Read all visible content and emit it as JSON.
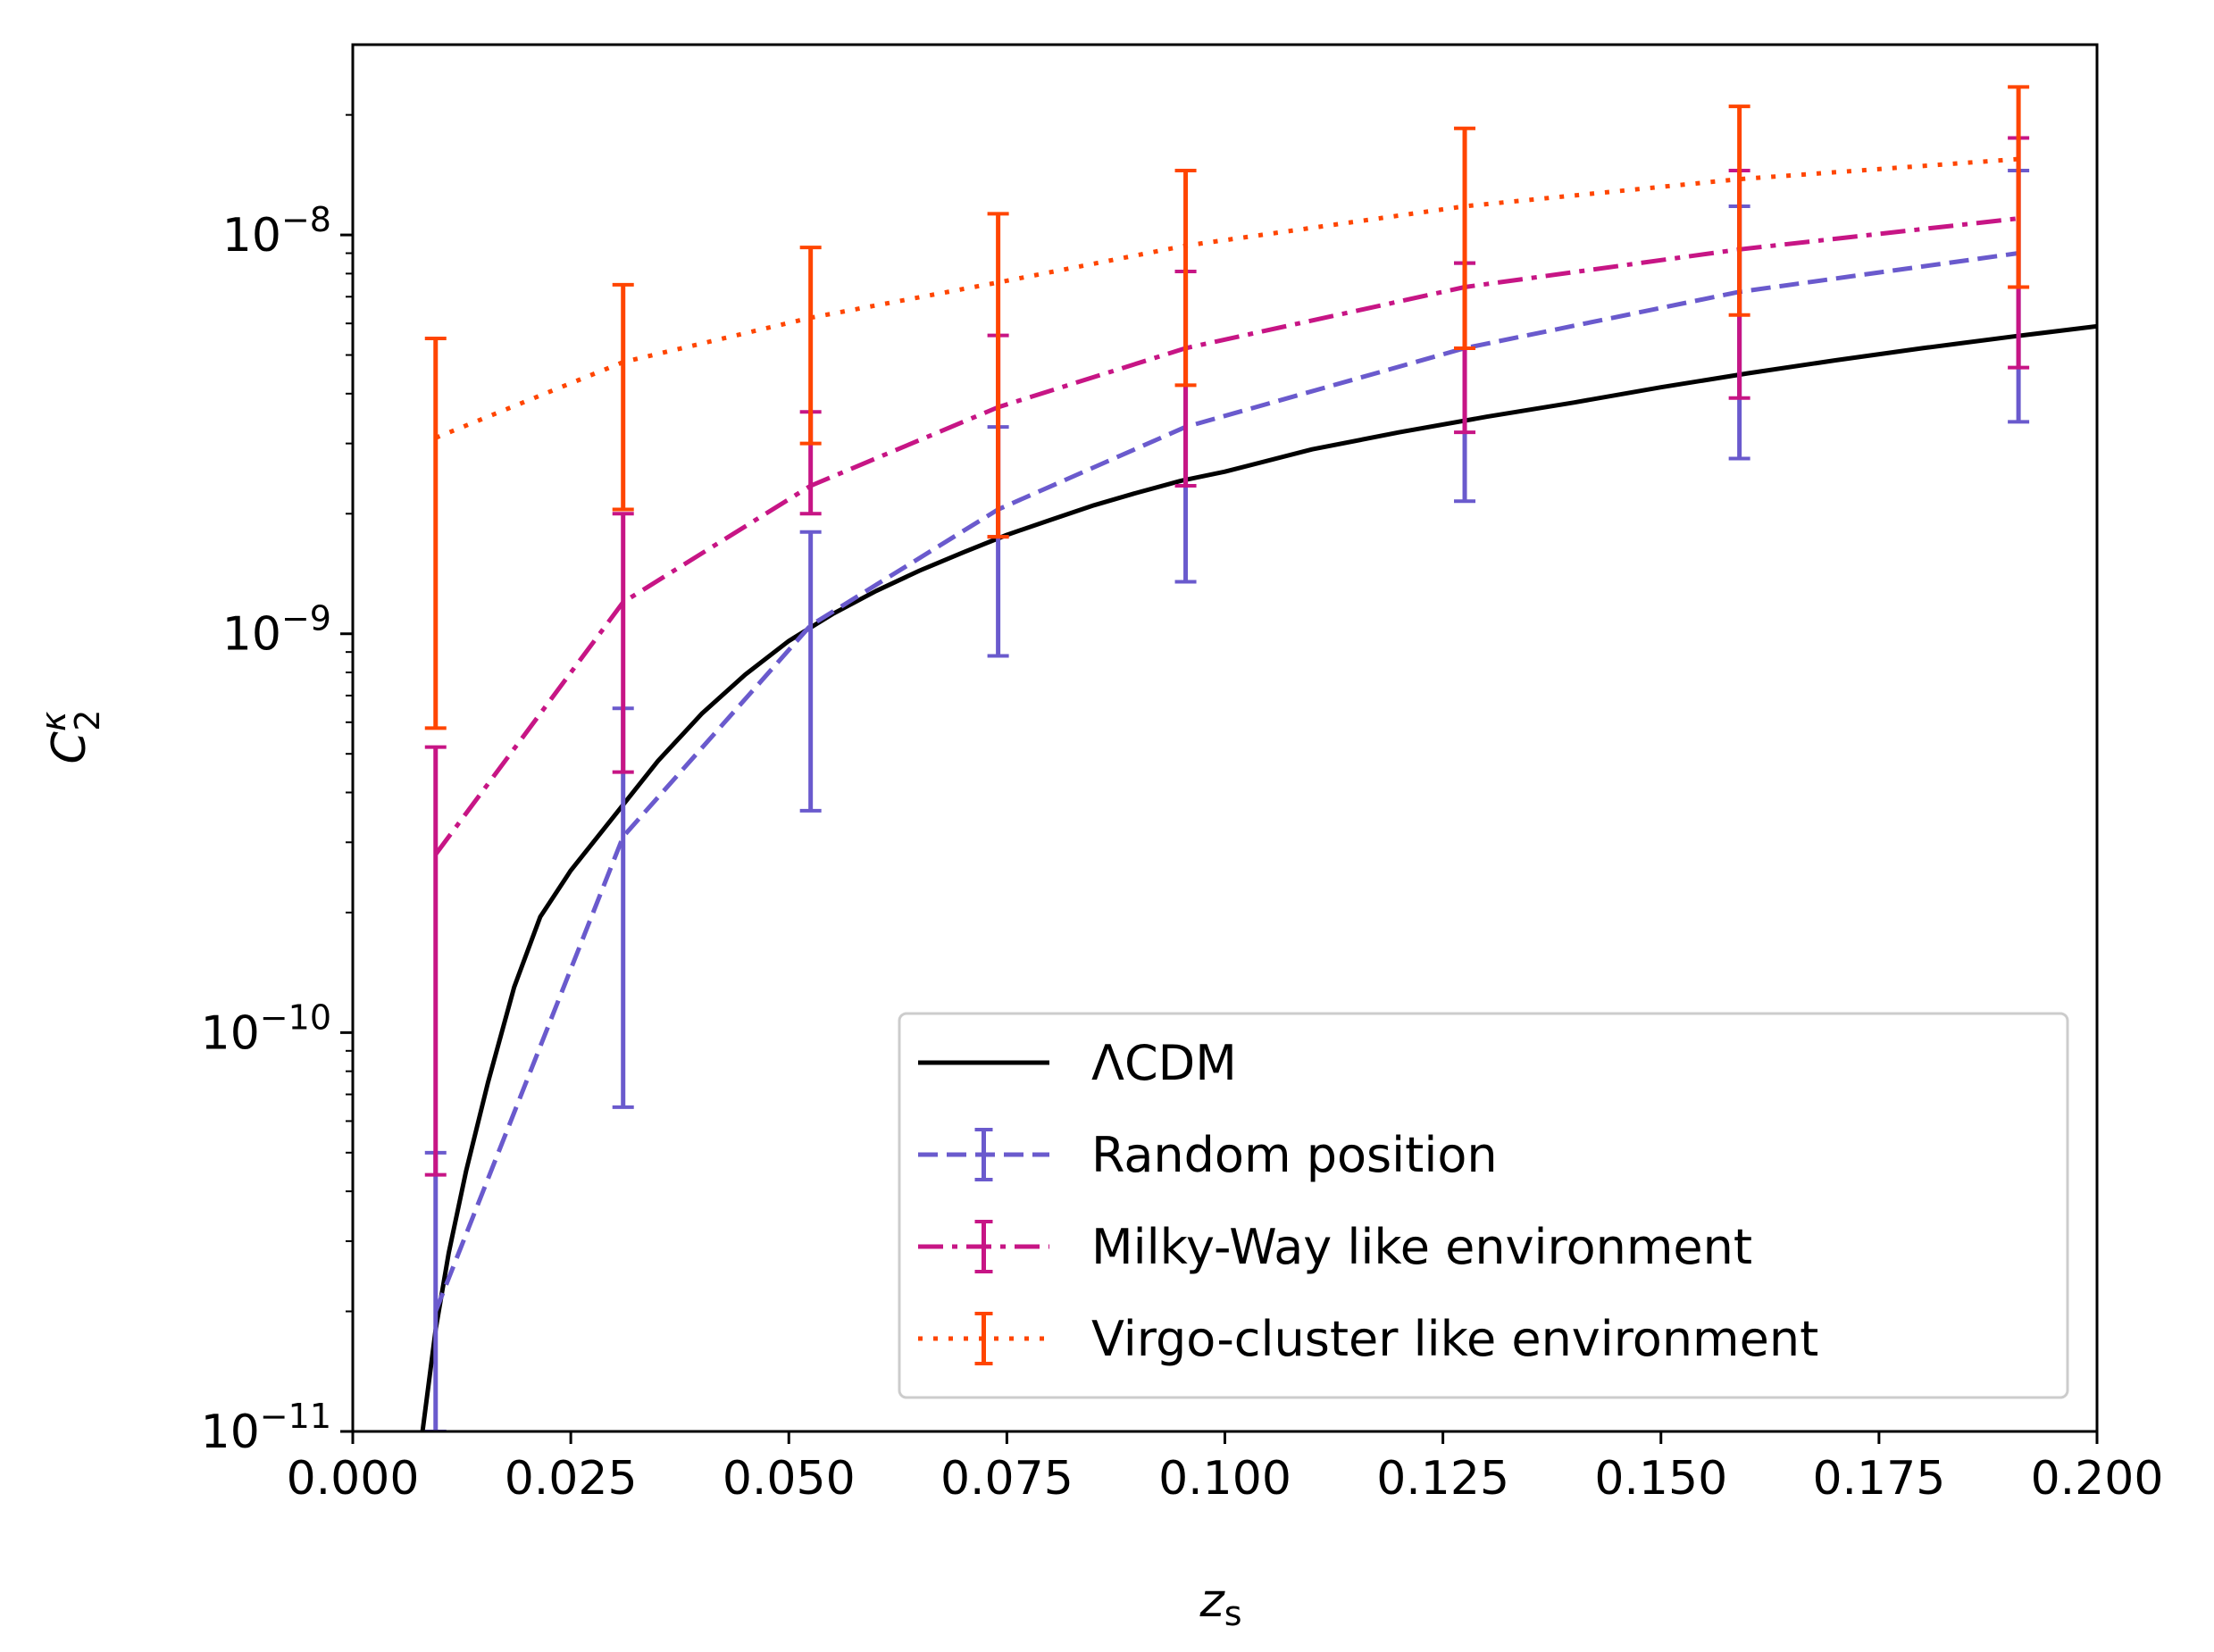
{
  "chart_data": {
    "type": "line",
    "xlabel": "z",
    "xlabel_sub": "s",
    "ylabel": "C",
    "ylabel_sup": "κ",
    "ylabel_sub": "2",
    "xscale": "linear",
    "yscale": "log",
    "xlim": [
      0.0,
      0.2
    ],
    "ylim": [
      1e-11,
      3e-08
    ],
    "xticks": [
      0.0,
      0.025,
      0.05,
      0.075,
      0.1,
      0.125,
      0.15,
      0.175,
      0.2
    ],
    "xtick_labels": [
      "0.000",
      "0.025",
      "0.050",
      "0.075",
      "0.100",
      "0.125",
      "0.150",
      "0.175",
      "0.200"
    ],
    "yticks": [
      {
        "value": 1e-11,
        "base": "10",
        "exp": "−11"
      },
      {
        "value": 1e-10,
        "base": "10",
        "exp": "−10"
      },
      {
        "value": 1e-09,
        "base": "10",
        "exp": "−9"
      },
      {
        "value": 1e-08,
        "base": "10",
        "exp": "−8"
      }
    ],
    "legend_position": "lower-right",
    "series": [
      {
        "name": "ΛCDM",
        "color": "#000000",
        "style": "solid",
        "x": [
          0.008,
          0.0095,
          0.011,
          0.013,
          0.0155,
          0.0185,
          0.0215,
          0.025,
          0.03,
          0.035,
          0.04,
          0.045,
          0.05,
          0.055,
          0.06,
          0.065,
          0.07,
          0.075,
          0.08,
          0.085,
          0.09,
          0.095,
          0.1,
          0.11,
          0.12,
          0.13,
          0.14,
          0.15,
          0.16,
          0.17,
          0.18,
          0.19,
          0.2
        ],
        "y": [
          1e-11,
          1.8e-11,
          2.8e-11,
          4.5e-11,
          7.5e-11,
          1.3e-10,
          1.95e-10,
          2.55e-10,
          3.5e-10,
          4.8e-10,
          6.3e-10,
          7.9e-10,
          9.6e-10,
          1.12e-09,
          1.28e-09,
          1.44e-09,
          1.6e-09,
          1.77e-09,
          1.93e-09,
          2.1e-09,
          2.26e-09,
          2.42e-09,
          2.55e-09,
          2.9e-09,
          3.2e-09,
          3.5e-09,
          3.8e-09,
          4.15e-09,
          4.5e-09,
          4.85e-09,
          5.2e-09,
          5.55e-09,
          5.9e-09
        ]
      },
      {
        "name": "Random position",
        "color": "#6a5acd",
        "style": "dashed",
        "x": [
          0.0095,
          0.031,
          0.0525,
          0.074,
          0.0955,
          0.1275,
          0.159,
          0.191
        ],
        "y": [
          2e-11,
          3.1e-10,
          1.05e-09,
          2.05e-09,
          3.3e-09,
          5.2e-09,
          7.2e-09,
          9e-09
        ],
        "err_low": [
          1e-11,
          6.5e-11,
          3.6e-10,
          8.8e-10,
          1.35e-09,
          2.15e-09,
          2.75e-09,
          3.4e-09
        ],
        "err_high": [
          5e-11,
          6.5e-10,
          1.8e-09,
          3.3e-09,
          8.1e-09,
          8.5e-09,
          1.18e-08,
          1.45e-08
        ]
      },
      {
        "name": "Milky-Way like environment",
        "color": "#c71585",
        "style": "dashdot",
        "x": [
          0.0095,
          0.031,
          0.0525,
          0.074,
          0.0955,
          0.1275,
          0.159,
          0.191
        ],
        "y": [
          2.8e-10,
          1.2e-09,
          2.35e-09,
          3.7e-09,
          5.2e-09,
          7.4e-09,
          9.2e-09,
          1.1e-08
        ],
        "err_low": [
          4.4e-11,
          4.5e-10,
          2e-09,
          1.75e-09,
          2.35e-09,
          3.2e-09,
          3.9e-09,
          4.65e-09
        ],
        "err_high": [
          5.2e-10,
          2e-09,
          3.6e-09,
          5.6e-09,
          8.1e-09,
          8.5e-09,
          1.45e-08,
          1.75e-08
        ]
      },
      {
        "name": "Virgo-cluster like environment",
        "color": "#ff4500",
        "style": "dotted",
        "x": [
          0.0095,
          0.031,
          0.0525,
          0.074,
          0.0955,
          0.1275,
          0.159,
          0.191
        ],
        "y": [
          3.1e-09,
          4.8e-09,
          6.2e-09,
          7.6e-09,
          9.4e-09,
          1.18e-08,
          1.38e-08,
          1.55e-08
        ],
        "err_low": [
          5.8e-10,
          2.05e-09,
          3e-09,
          1.75e-09,
          4.2e-09,
          5.2e-09,
          6.3e-09,
          7.4e-09
        ],
        "err_high": [
          5.5e-09,
          7.5e-09,
          9.3e-09,
          1.13e-08,
          1.45e-08,
          1.85e-08,
          2.1e-08,
          2.35e-08
        ]
      }
    ]
  }
}
